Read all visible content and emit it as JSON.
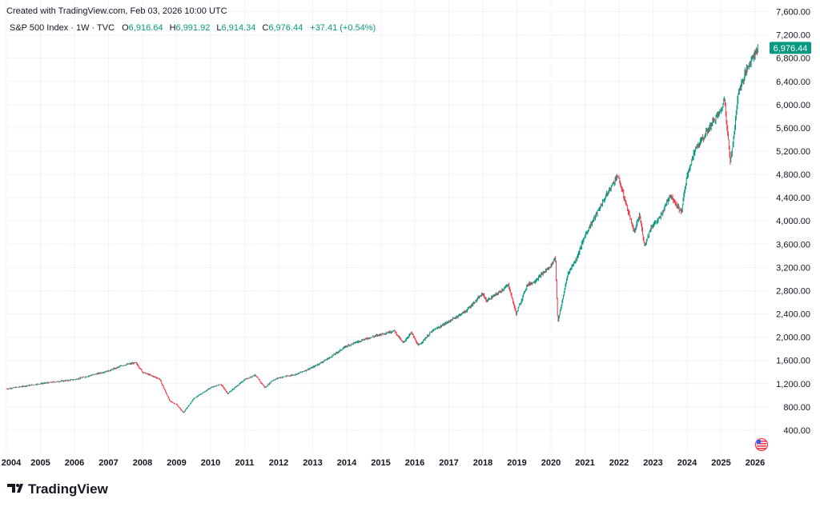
{
  "header": {
    "created_text": "Created with TradingView.com, Feb 03, 2026 10:00 UTC",
    "symbol": "S&P 500 Index · 1W · TVC",
    "open_label": "O",
    "open_value": "6,916.64",
    "high_label": "H",
    "high_value": "6,991.92",
    "low_label": "L",
    "low_value": "6,914.34",
    "close_label": "C",
    "close_value": "6,976.44",
    "change": "+37.41 (+0.54%)"
  },
  "last_price_label": "6,976.44",
  "logo": {
    "text": "TradingView",
    "icon": "tradingview-logo-icon"
  },
  "flag_icon": "us-flag-icon",
  "colors": {
    "up": "#089981",
    "down": "#f23645",
    "grid": "#f0f3fa",
    "text": "#131722"
  },
  "chart_data": {
    "type": "line",
    "series": [
      {
        "name": "S&P 500 Index",
        "x": [
          2004.0,
          2005.0,
          2006.0,
          2007.0,
          2007.45,
          2007.8,
          2008.0,
          2008.5,
          2008.8,
          2009.0,
          2009.2,
          2009.5,
          2010.0,
          2010.3,
          2010.5,
          2011.0,
          2011.3,
          2011.6,
          2011.8,
          2012.0,
          2012.5,
          2013.0,
          2013.5,
          2014.0,
          2014.5,
          2015.0,
          2015.4,
          2015.65,
          2015.9,
          2016.1,
          2016.5,
          2017.0,
          2017.5,
          2018.0,
          2018.1,
          2018.5,
          2018.75,
          2018.98,
          2019.3,
          2019.5,
          2020.0,
          2020.13,
          2020.2,
          2020.5,
          2020.75,
          2021.0,
          2021.5,
          2021.95,
          2022.0,
          2022.45,
          2022.6,
          2022.75,
          2022.95,
          2023.2,
          2023.5,
          2023.83,
          2024.0,
          2024.25,
          2024.5,
          2024.75,
          2025.0,
          2025.1,
          2025.27,
          2025.4,
          2025.5,
          2025.75,
          2025.9,
          2026.08
        ],
        "values": [
          1110,
          1200,
          1270,
          1420,
          1520,
          1560,
          1400,
          1280,
          900,
          840,
          700,
          940,
          1130,
          1190,
          1030,
          1270,
          1350,
          1130,
          1250,
          1300,
          1360,
          1480,
          1650,
          1850,
          1960,
          2050,
          2110,
          1900,
          2080,
          1850,
          2100,
          2270,
          2450,
          2750,
          2620,
          2780,
          2900,
          2400,
          2900,
          2950,
          3230,
          3380,
          2250,
          3100,
          3350,
          3750,
          4300,
          4780,
          4700,
          3800,
          4100,
          3580,
          3900,
          4050,
          4450,
          4150,
          4780,
          5250,
          5450,
          5700,
          5900,
          6100,
          5000,
          5600,
          6200,
          6600,
          6800,
          6976.44
        ]
      }
    ],
    "xlim": [
      2004.0,
      2026.4
    ],
    "ylim": [
      0,
      7800
    ],
    "y_ticks": [
      400,
      800,
      1200,
      1600,
      2000,
      2400,
      2800,
      3200,
      3600,
      4000,
      4400,
      4800,
      5200,
      5600,
      6000,
      6400,
      6800,
      7200,
      7600
    ],
    "y_tick_labels": [
      "400.00",
      "800.00",
      "1,200.00",
      "1,600.00",
      "2,000.00",
      "2,400.00",
      "2,800.00",
      "3,200.00",
      "3,600.00",
      "4,000.00",
      "4,400.00",
      "4,800.00",
      "5,200.00",
      "5,600.00",
      "6,000.00",
      "6,400.00",
      "6,800.00",
      "7,200.00",
      "7,600.00"
    ],
    "x_tick_labels": [
      "2004",
      "2005",
      "2006",
      "2007",
      "2008",
      "2009",
      "2010",
      "2011",
      "2012",
      "2013",
      "2014",
      "2015",
      "2016",
      "2017",
      "2018",
      "2019",
      "2020",
      "2021",
      "2022",
      "2023",
      "2024",
      "2025",
      "2026"
    ],
    "grid": true
  }
}
